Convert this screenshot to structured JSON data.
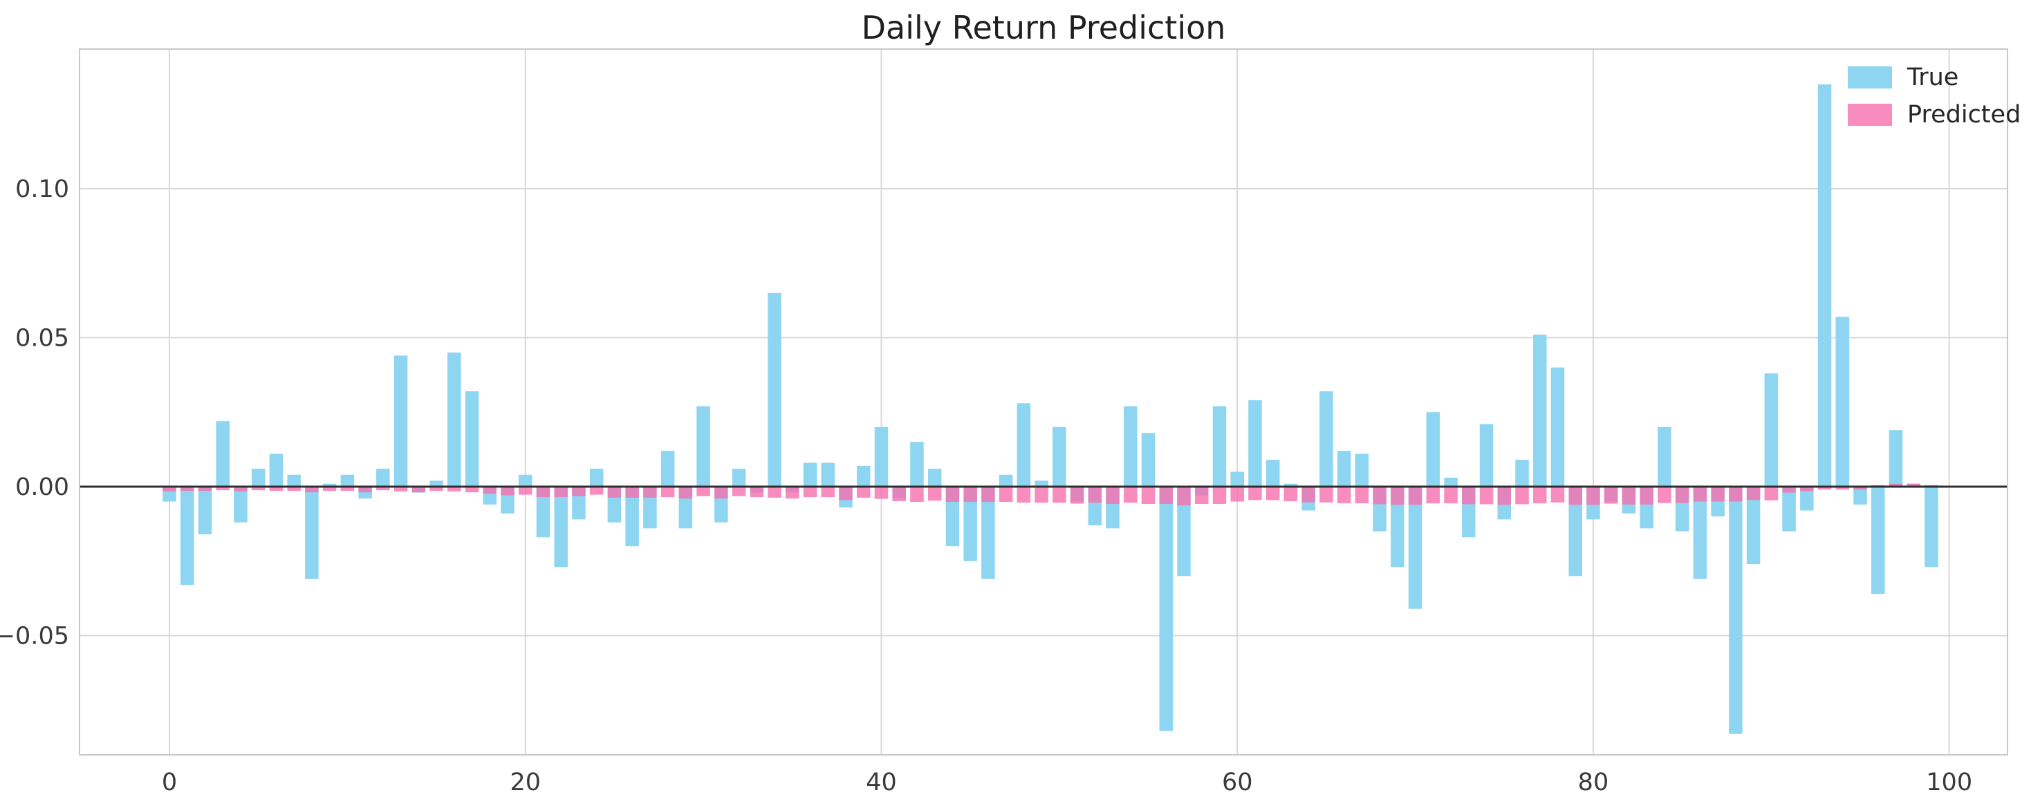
{
  "chart_data": {
    "type": "bar",
    "title": "Daily Return Prediction",
    "xlabel": "",
    "ylabel": "",
    "xlim": [
      -5.0,
      103.2
    ],
    "ylim": [
      -0.0902,
      0.147
    ],
    "grid": true,
    "zero_line": true,
    "legend_position": "upper right",
    "x_ticks": [
      {
        "value": 0,
        "label": "0"
      },
      {
        "value": 20,
        "label": "20"
      },
      {
        "value": 40,
        "label": "40"
      },
      {
        "value": 60,
        "label": "60"
      },
      {
        "value": 80,
        "label": "80"
      },
      {
        "value": 100,
        "label": "100"
      }
    ],
    "y_ticks": [
      {
        "value": 0.1,
        "label": "0.10"
      },
      {
        "value": 0.05,
        "label": "0.05"
      },
      {
        "value": 0.0,
        "label": "0.00"
      },
      {
        "value": -0.05,
        "label": "−0.05"
      }
    ],
    "categories_note": "x = day index 0..99",
    "series": [
      {
        "name": "True",
        "color": "#8ED5F2",
        "values": [
          -0.005,
          -0.033,
          -0.016,
          0.022,
          -0.012,
          0.006,
          0.011,
          0.004,
          -0.031,
          0.001,
          0.004,
          -0.004,
          0.006,
          0.044,
          -0.002,
          0.002,
          0.045,
          0.032,
          -0.006,
          -0.009,
          0.004,
          -0.017,
          -0.027,
          -0.011,
          0.006,
          -0.012,
          -0.02,
          -0.014,
          0.012,
          -0.014,
          0.027,
          -0.012,
          0.006,
          -0.002,
          0.065,
          -0.002,
          0.008,
          0.008,
          -0.007,
          0.007,
          0.02,
          -0.004,
          0.015,
          0.006,
          -0.02,
          -0.025,
          -0.031,
          0.004,
          0.028,
          0.002,
          0.02,
          -0.005,
          -0.013,
          -0.014,
          0.027,
          0.018,
          -0.082,
          -0.03,
          -0.003,
          0.027,
          0.005,
          0.029,
          0.009,
          0.001,
          -0.008,
          0.032,
          0.012,
          0.011,
          -0.015,
          -0.027,
          -0.041,
          0.025,
          0.003,
          -0.017,
          0.021,
          -0.011,
          0.009,
          0.051,
          0.04,
          -0.03,
          -0.011,
          -0.005,
          -0.009,
          -0.014,
          0.02,
          -0.015,
          -0.031,
          -0.01,
          -0.083,
          -0.026,
          0.038,
          -0.015,
          -0.008,
          0.135,
          0.057,
          -0.006,
          -0.036,
          0.019,
          0.001,
          -0.027
        ]
      },
      {
        "name": "Predicted",
        "color": "#F98CBE",
        "values": [
          -0.0016,
          -0.0014,
          -0.0014,
          -0.0012,
          -0.0016,
          -0.0012,
          -0.0014,
          -0.0014,
          -0.0019,
          -0.0014,
          -0.0014,
          -0.0019,
          -0.0012,
          -0.0016,
          -0.0019,
          -0.0014,
          -0.0016,
          -0.0019,
          -0.0024,
          -0.0029,
          -0.0027,
          -0.0035,
          -0.0035,
          -0.0032,
          -0.0027,
          -0.0037,
          -0.0037,
          -0.0037,
          -0.0035,
          -0.004,
          -0.0032,
          -0.004,
          -0.0032,
          -0.0035,
          -0.0037,
          -0.004,
          -0.0035,
          -0.0035,
          -0.0045,
          -0.0037,
          -0.0041,
          -0.0049,
          -0.0051,
          -0.0047,
          -0.0051,
          -0.0051,
          -0.0051,
          -0.0051,
          -0.0054,
          -0.0054,
          -0.0054,
          -0.0057,
          -0.0054,
          -0.0058,
          -0.0054,
          -0.0058,
          -0.0058,
          -0.0063,
          -0.0058,
          -0.0058,
          -0.005,
          -0.0045,
          -0.0045,
          -0.0049,
          -0.0053,
          -0.0053,
          -0.0056,
          -0.0056,
          -0.0059,
          -0.0061,
          -0.0061,
          -0.0056,
          -0.0056,
          -0.0059,
          -0.0059,
          -0.0061,
          -0.0059,
          -0.0056,
          -0.0053,
          -0.0061,
          -0.0061,
          -0.0057,
          -0.006,
          -0.006,
          -0.0055,
          -0.0055,
          -0.005,
          -0.005,
          -0.005,
          -0.0045,
          -0.0046,
          -0.002,
          -0.0015,
          -0.001,
          -0.001,
          -0.001,
          0.0005,
          0.001,
          0.001,
          0.0005
        ]
      }
    ],
    "legend": [
      "True",
      "Predicted"
    ]
  },
  "style": {
    "grid_color": "#D8D8D8",
    "frame_color": "#C8C8C8",
    "zero_line_color": "#2E2E2E",
    "true_bar_fill": "#8ED5F2",
    "predicted_bar_fill": "#F86FAE",
    "predicted_bar_opacity": 0.8,
    "background": "#FFFFFF"
  }
}
